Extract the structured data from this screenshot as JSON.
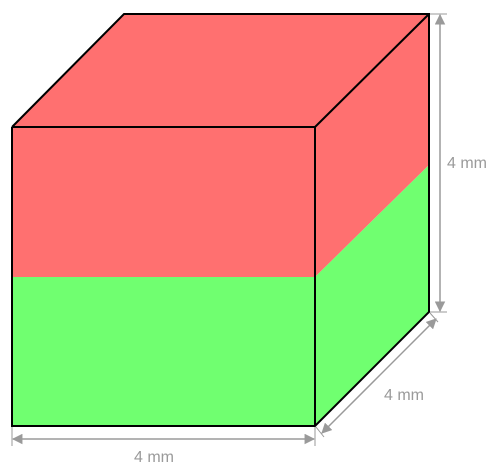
{
  "cube": {
    "top_color": "#ff7070",
    "bottom_color": "#70ff70",
    "edge_color": "#000000"
  },
  "dimensions": {
    "height_label": "4 mm",
    "depth_label": "4 mm",
    "width_label": "4 mm",
    "line_color": "#9a9a9a",
    "text_color": "#9a9a9a"
  }
}
